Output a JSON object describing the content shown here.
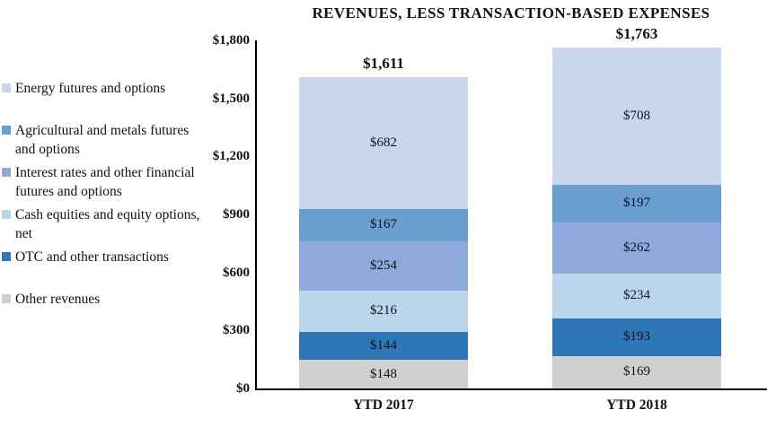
{
  "title": "REVENUES, LESS TRANSACTION-BASED EXPENSES",
  "legend": {
    "items": [
      {
        "label": "Energy futures and options",
        "color": "#c9d7ee"
      },
      {
        "label": "Agricultural and metals futures and options",
        "color": "#689fce"
      },
      {
        "label": "Interest rates and other financial futures and options",
        "color": "#8fa9dc"
      },
      {
        "label": "Cash equities and equity options, net",
        "color": "#bad5ec"
      },
      {
        "label": "OTC and other transactions",
        "color": "#2f76b6"
      },
      {
        "label": "Other revenues",
        "color": "#d1cfcf"
      }
    ]
  },
  "y_axis": {
    "ticks": [
      {
        "label": "$1,800",
        "value": 1800
      },
      {
        "label": "$1,500",
        "value": 1500
      },
      {
        "label": "$1,200",
        "value": 1200
      },
      {
        "label": "$900",
        "value": 900
      },
      {
        "label": "$600",
        "value": 600
      },
      {
        "label": "$300",
        "value": 300
      },
      {
        "label": "$0",
        "value": 0
      }
    ]
  },
  "chart_data": {
    "type": "bar",
    "stacked": true,
    "title": "REVENUES, LESS TRANSACTION-BASED EXPENSES",
    "categories": [
      "YTD 2017",
      "YTD 2018"
    ],
    "series": [
      {
        "name": "Other revenues",
        "color": "#d1cfcf",
        "values": [
          148,
          169
        ],
        "labels": [
          "$148",
          "$169"
        ]
      },
      {
        "name": "OTC and other transactions",
        "color": "#2f76b6",
        "values": [
          144,
          193
        ],
        "labels": [
          "$144",
          "$193"
        ]
      },
      {
        "name": "Cash equities and equity options, net",
        "color": "#bad5ec",
        "values": [
          216,
          234
        ],
        "labels": [
          "$216",
          "$234"
        ]
      },
      {
        "name": "Interest rates and other financial futures and options",
        "color": "#8fa9dc",
        "values": [
          254,
          262
        ],
        "labels": [
          "$254",
          "$262"
        ]
      },
      {
        "name": "Agricultural and metals futures and options",
        "color": "#689fce",
        "values": [
          167,
          197
        ],
        "labels": [
          "$167",
          "$197"
        ]
      },
      {
        "name": "Energy futures and options",
        "color": "#c9d7ee",
        "values": [
          682,
          708
        ],
        "labels": [
          "$682",
          "$708"
        ]
      }
    ],
    "totals": [
      {
        "label": "$1,611",
        "value": 1611
      },
      {
        "label": "$1,763",
        "value": 1763
      }
    ],
    "ylim": [
      0,
      1800
    ],
    "grid": false,
    "legend_position": "left"
  }
}
